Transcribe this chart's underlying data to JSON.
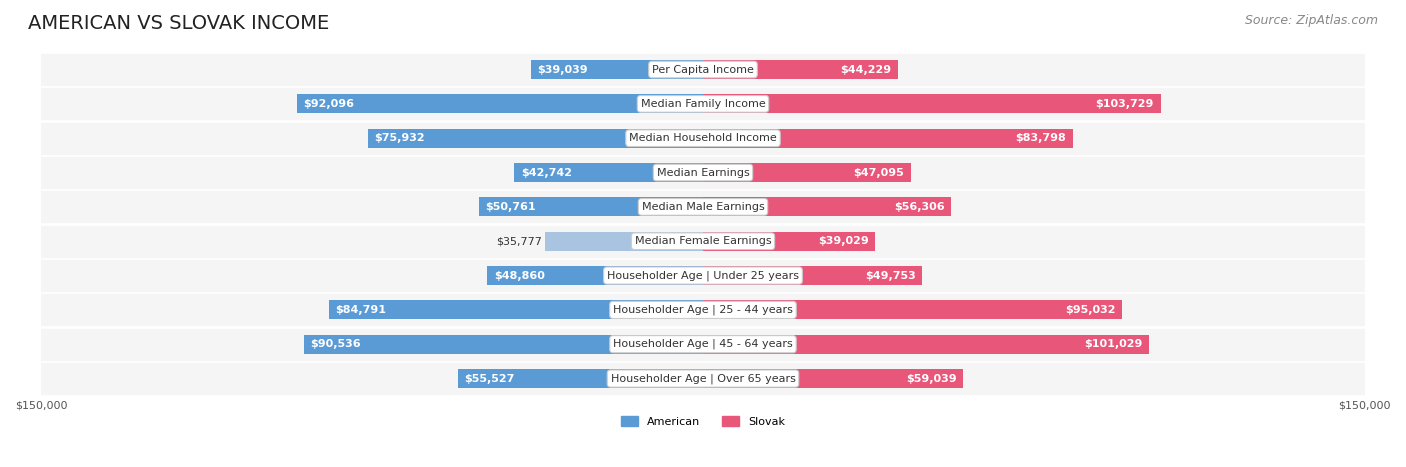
{
  "title": "AMERICAN VS SLOVAK INCOME",
  "source": "Source: ZipAtlas.com",
  "categories": [
    "Per Capita Income",
    "Median Family Income",
    "Median Household Income",
    "Median Earnings",
    "Median Male Earnings",
    "Median Female Earnings",
    "Householder Age | Under 25 years",
    "Householder Age | 25 - 44 years",
    "Householder Age | 45 - 64 years",
    "Householder Age | Over 65 years"
  ],
  "american_values": [
    39039,
    92096,
    75932,
    42742,
    50761,
    35777,
    48860,
    84791,
    90536,
    55527
  ],
  "slovak_values": [
    44229,
    103729,
    83798,
    47095,
    56306,
    39029,
    49753,
    95032,
    101029,
    59039
  ],
  "max_val": 150000,
  "american_color_light": "#a8c4e0",
  "american_color_dark": "#5b9bd5",
  "slovak_color_light": "#f4a7b9",
  "slovak_color_dark": "#e8567a",
  "label_bg": "#f0f0f0",
  "row_bg": "#f5f5f5",
  "title_fontsize": 14,
  "source_fontsize": 9,
  "value_fontsize": 8,
  "category_fontsize": 8,
  "axis_fontsize": 8,
  "american_label": "American",
  "slovak_label": "Slovak"
}
